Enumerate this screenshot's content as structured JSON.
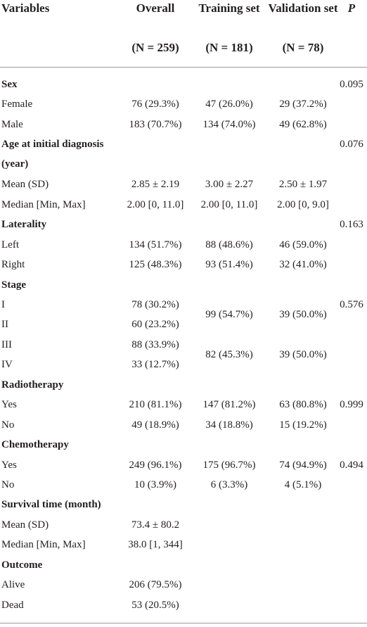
{
  "table": {
    "header": {
      "variables": "Variables",
      "overall": "Overall",
      "overall_n": "(N = 259)",
      "training": "Training set",
      "training_n": "(N = 181)",
      "validation": "Validation set",
      "validation_n": "(N = 78)",
      "p": "P"
    },
    "rows": [
      {
        "heading": "Sex",
        "p": "0.095"
      },
      {
        "label": "Female",
        "overall": "76 (29.3%)",
        "training": "47 (26.0%)",
        "validation": "29 (37.2%)"
      },
      {
        "label": "Male",
        "overall": "183 (70.7%)",
        "training": "134 (74.0%)",
        "validation": "49 (62.8%)"
      },
      {
        "heading": "Age at initial diagnosis (year)",
        "p": "0.076"
      },
      {
        "label": "Mean (SD)",
        "overall": "2.85 ± 2.19",
        "training": "3.00 ± 2.27",
        "validation": "2.50 ± 1.97"
      },
      {
        "label": "Median [Min, Max]",
        "overall": "2.00 [0, 11.0]",
        "training": "2.00 [0, 11.0]",
        "validation": "2.00 [0, 9.0]"
      },
      {
        "heading": "Laterality",
        "p": "0.163"
      },
      {
        "label": "Left",
        "overall": "134 (51.7%)",
        "training": "88 (48.6%)",
        "validation": "46 (59.0%)"
      },
      {
        "label": "Right",
        "overall": "125 (48.3%)",
        "training": "93 (51.4%)",
        "validation": "32 (41.0%)"
      },
      {
        "heading": "Stage"
      },
      {
        "label": "I",
        "overall": "78 (30.2%)",
        "training": "99 (54.7%)",
        "validation": "39 (50.0%)",
        "p": "0.576"
      },
      {
        "label": "II",
        "overall": "60 (23.2%)"
      },
      {
        "label": "III",
        "overall": "88 (33.9%)",
        "training": "82 (45.3%)",
        "validation": "39 (50.0%)"
      },
      {
        "label": "IV",
        "overall": "33 (12.7%)"
      },
      {
        "heading": "Radiotherapy"
      },
      {
        "label": "Yes",
        "overall": "210 (81.1%)",
        "training": "147 (81.2%)",
        "validation": "63 (80.8%)",
        "p": "0.999"
      },
      {
        "label": "No",
        "overall": "49 (18.9%)",
        "training": "34 (18.8%)",
        "validation": "15 (19.2%)"
      },
      {
        "heading": "Chemotherapy"
      },
      {
        "label": "Yes",
        "overall": "249 (96.1%)",
        "training": "175 (96.7%)",
        "validation": "74 (94.9%)",
        "p": "0.494"
      },
      {
        "label": "No",
        "overall": "10 (3.9%)",
        "training": "6 (3.3%)",
        "validation": "4 (5.1%)"
      },
      {
        "heading": "Survival time (month)"
      },
      {
        "label": "Mean (SD)",
        "overall": "73.4 ± 80.2"
      },
      {
        "label": "Median [Min, Max]",
        "overall": "38.0 [1, 344]"
      },
      {
        "heading": "Outcome"
      },
      {
        "label": "Alive",
        "overall": "206 (79.5%)"
      },
      {
        "label": "Dead",
        "overall": "53 (20.5%)"
      }
    ]
  }
}
